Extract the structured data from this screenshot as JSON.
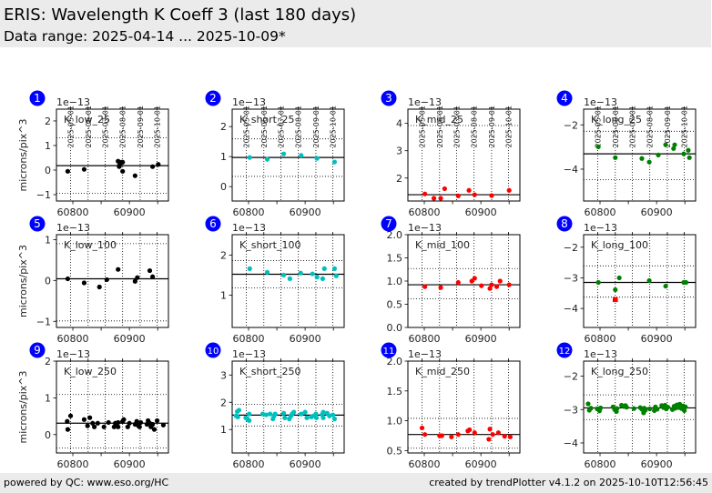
{
  "header": {
    "title": "ERIS: Wavelength K Coeff 3 (last 180 days)",
    "subtitle": "Data range: 2025-04-14 ... 2025-10-09*"
  },
  "footer": {
    "left": "powered by QC: www.eso.org/HC",
    "right": "created by trendPlotter v4.1.2 on 2025-10-10T12:56:45"
  },
  "ylabel": "microns/pix^3",
  "scale_label": "1e−13",
  "colors": {
    "low": "#000000",
    "short": "#00bfbf",
    "mid": "#ff0000",
    "long": "#008000",
    "badge": "#0000ff",
    "outlier": "#ff0000"
  },
  "date_ticks": [
    {
      "mjd": 60796,
      "label": "2025-05-01"
    },
    {
      "mjd": 60827,
      "label": "2025-06-01"
    },
    {
      "mjd": 60857,
      "label": "2025-07-01"
    },
    {
      "mjd": 60888,
      "label": "2025-08-01"
    },
    {
      "mjd": 60919,
      "label": "2025-09-01"
    },
    {
      "mjd": 60949,
      "label": "2025-10-01"
    }
  ],
  "xticks": [
    {
      "v": 60800,
      "label": "60800"
    },
    {
      "v": 60850,
      "label": ""
    },
    {
      "v": 60900,
      "label": "60900"
    },
    {
      "v": 60950,
      "label": ""
    }
  ],
  "chart_data": [
    {
      "type": "scatter",
      "index": "1",
      "title": "K_low_25",
      "color_key": "low",
      "xlim": [
        60771,
        60969
      ],
      "ylim": [
        -1.26,
        2.48
      ],
      "yticks": [
        {
          "v": -1,
          "label": "−1"
        },
        {
          "v": 0,
          "label": "0"
        },
        {
          "v": 1,
          "label": "1"
        },
        {
          "v": 2,
          "label": "2"
        }
      ],
      "median": 0.18,
      "limits": [
        1.31,
        -0.95
      ],
      "points": [
        [
          60791,
          -0.05
        ],
        [
          60820,
          0.03
        ],
        [
          60880,
          0.36
        ],
        [
          60882,
          0.17
        ],
        [
          60884,
          0.26
        ],
        [
          60886,
          0.32
        ],
        [
          60882,
          0.14
        ],
        [
          60888,
          -0.05
        ],
        [
          60888,
          0.32
        ],
        [
          60910,
          -0.23
        ],
        [
          60941,
          0.14
        ],
        [
          60951,
          0.23
        ]
      ],
      "outliers": []
    },
    {
      "type": "scatter",
      "index": "2",
      "title": "K_short_25",
      "color_key": "short",
      "xlim": [
        60771,
        60969
      ],
      "ylim": [
        -0.48,
        2.58
      ],
      "yticks": [
        {
          "v": 0,
          "label": "0"
        },
        {
          "v": 1,
          "label": "1"
        },
        {
          "v": 2,
          "label": "2"
        }
      ],
      "median": 0.97,
      "limits": [
        1.59,
        0.34
      ],
      "points": [
        [
          60802,
          0.97
        ],
        [
          60833,
          0.91
        ],
        [
          60862,
          1.09
        ],
        [
          60893,
          1.04
        ],
        [
          60921,
          0.94
        ],
        [
          60952,
          0.82
        ]
      ],
      "outliers": []
    },
    {
      "type": "scatter",
      "index": "3",
      "title": "K_mid_25",
      "color_key": "mid",
      "xlim": [
        60771,
        60969
      ],
      "ylim": [
        1.16,
        4.52
      ],
      "yticks": [
        {
          "v": 2,
          "label": "2"
        },
        {
          "v": 3,
          "label": "3"
        },
        {
          "v": 4,
          "label": "4"
        }
      ],
      "median": 1.39,
      "limits": [
        3.92
      ],
      "points": [
        [
          60801,
          1.42
        ],
        [
          60817,
          1.26
        ],
        [
          60829,
          1.26
        ],
        [
          60836,
          1.61
        ],
        [
          60860,
          1.35
        ],
        [
          60879,
          1.55
        ],
        [
          60889,
          1.39
        ],
        [
          60919,
          1.36
        ],
        [
          60950,
          1.55
        ]
      ],
      "outliers": []
    },
    {
      "type": "scatter",
      "index": "4",
      "title": "K_long_25",
      "color_key": "long",
      "xlim": [
        60771,
        60969
      ],
      "ylim": [
        -5.44,
        -1.29
      ],
      "yticks": [
        {
          "v": -4,
          "label": "−4"
        },
        {
          "v": -2,
          "label": "−2"
        }
      ],
      "median": -3.31,
      "limits": [
        -2.29,
        -4.48
      ],
      "points": [
        [
          60797,
          -2.99
        ],
        [
          60827,
          -3.48
        ],
        [
          60874,
          -3.52
        ],
        [
          60887,
          -3.68
        ],
        [
          60903,
          -3.36
        ],
        [
          60916,
          -2.9
        ],
        [
          60930,
          -3.07
        ],
        [
          60932,
          -2.9
        ],
        [
          60948,
          -3.31
        ],
        [
          60956,
          -3.15
        ],
        [
          60958,
          -3.48
        ]
      ],
      "outliers": []
    },
    {
      "type": "scatter",
      "index": "5",
      "title": "K_low_100",
      "color_key": "low",
      "xlim": [
        60771,
        60969
      ],
      "ylim": [
        -1.15,
        1.12
      ],
      "yticks": [
        {
          "v": -1,
          "label": "−1"
        },
        {
          "v": 0,
          "label": "0"
        },
        {
          "v": 1,
          "label": "1"
        }
      ],
      "median": 0.04,
      "limits": [
        0.9,
        -0.99
      ],
      "points": [
        [
          60791,
          0.04
        ],
        [
          60820,
          -0.06
        ],
        [
          60847,
          -0.16
        ],
        [
          60860,
          0.02
        ],
        [
          60880,
          0.27
        ],
        [
          60910,
          -0.02
        ],
        [
          60914,
          0.07
        ],
        [
          60936,
          0.24
        ],
        [
          60941,
          0.09
        ]
      ],
      "outliers": []
    },
    {
      "type": "scatter",
      "index": "6",
      "title": "K_short_100",
      "color_key": "short",
      "xlim": [
        60771,
        60969
      ],
      "ylim": [
        0.19,
        2.51
      ],
      "yticks": [
        {
          "v": 1,
          "label": "1"
        },
        {
          "v": 2,
          "label": "2"
        }
      ],
      "median": 1.52,
      "limits": [
        1.86,
        1.18
      ],
      "points": [
        [
          60802,
          1.66
        ],
        [
          60833,
          1.57
        ],
        [
          60862,
          1.5
        ],
        [
          60873,
          1.41
        ],
        [
          60892,
          1.55
        ],
        [
          60913,
          1.53
        ],
        [
          60921,
          1.45
        ],
        [
          60931,
          1.41
        ],
        [
          60934,
          1.66
        ],
        [
          60952,
          1.66
        ],
        [
          60955,
          1.48
        ]
      ],
      "outliers": []
    },
    {
      "type": "scatter",
      "index": "7",
      "title": "K_mid_100",
      "color_key": "mid",
      "xlim": [
        60771,
        60969
      ],
      "ylim": [
        0.0,
        2.0
      ],
      "yticks": [
        {
          "v": 0,
          "label": "0.0"
        },
        {
          "v": 0.5,
          "label": "0.5"
        },
        {
          "v": 1.0,
          "label": "1.0"
        },
        {
          "v": 1.5,
          "label": "1.5"
        },
        {
          "v": 2.0,
          "label": "2.0"
        }
      ],
      "median": 0.92,
      "limits": [
        1.27,
        0.62
      ],
      "points": [
        [
          60801,
          0.88
        ],
        [
          60829,
          0.86
        ],
        [
          60860,
          0.97
        ],
        [
          60884,
          1.0
        ],
        [
          60889,
          1.06
        ],
        [
          60901,
          0.9
        ],
        [
          60916,
          0.84
        ],
        [
          60919,
          0.92
        ],
        [
          60928,
          0.88
        ],
        [
          60934,
          1.0
        ],
        [
          60950,
          0.92
        ]
      ],
      "outliers": []
    },
    {
      "type": "scatter",
      "index": "8",
      "title": "K_long_100",
      "color_key": "long",
      "xlim": [
        60771,
        60969
      ],
      "ylim": [
        -4.62,
        -1.59
      ],
      "yticks": [
        {
          "v": -4,
          "label": "−4"
        },
        {
          "v": -3,
          "label": "−3"
        },
        {
          "v": -2,
          "label": "−2"
        }
      ],
      "median": -3.15,
      "limits": [
        -2.61,
        -3.63
      ],
      "points": [
        [
          60797,
          -3.15
        ],
        [
          60827,
          -3.39
        ],
        [
          60834,
          -3.0
        ],
        [
          60887,
          -3.09
        ],
        [
          60916,
          -3.27
        ],
        [
          60948,
          -3.15
        ],
        [
          60952,
          -3.15
        ]
      ],
      "outliers": [
        [
          60827,
          -3.71
        ]
      ]
    },
    {
      "type": "scatter",
      "index": "9",
      "title": "K_low_250",
      "color_key": "low",
      "xlim": [
        60771,
        60969
      ],
      "ylim": [
        -0.5,
        2.0
      ],
      "yticks": [
        {
          "v": 0,
          "label": "0"
        },
        {
          "v": 1,
          "label": "1"
        },
        {
          "v": 2,
          "label": "2"
        }
      ],
      "median": 0.31,
      "limits": [
        1.09,
        -0.36
      ],
      "points": [
        [
          60790,
          0.36
        ],
        [
          60791,
          0.14
        ],
        [
          60796,
          0.51
        ],
        [
          60820,
          0.41
        ],
        [
          60826,
          0.24
        ],
        [
          60830,
          0.46
        ],
        [
          60835,
          0.31
        ],
        [
          60838,
          0.21
        ],
        [
          60844,
          0.31
        ],
        [
          60855,
          0.21
        ],
        [
          60863,
          0.33
        ],
        [
          60873,
          0.21
        ],
        [
          60875,
          0.31
        ],
        [
          60876,
          0.26
        ],
        [
          60880,
          0.21
        ],
        [
          60880,
          0.33
        ],
        [
          60888,
          0.36
        ],
        [
          60890,
          0.41
        ],
        [
          60897,
          0.21
        ],
        [
          60900,
          0.31
        ],
        [
          60910,
          0.28
        ],
        [
          60913,
          0.36
        ],
        [
          60916,
          0.24
        ],
        [
          60918,
          0.21
        ],
        [
          60920,
          0.33
        ],
        [
          60931,
          0.28
        ],
        [
          60933,
          0.38
        ],
        [
          60936,
          0.31
        ],
        [
          60938,
          0.21
        ],
        [
          60941,
          0.28
        ],
        [
          60944,
          0.14
        ],
        [
          60949,
          0.38
        ],
        [
          60960,
          0.26
        ]
      ],
      "outliers": []
    },
    {
      "type": "scatter",
      "index": "10",
      "title": "K_short_250",
      "color_key": "short",
      "xlim": [
        60771,
        60969
      ],
      "ylim": [
        0.14,
        3.51
      ],
      "yticks": [
        {
          "v": 1,
          "label": "1"
        },
        {
          "v": 2,
          "label": "2"
        },
        {
          "v": 3,
          "label": "3"
        }
      ],
      "median": 1.53,
      "limits": [
        1.93,
        1.13
      ],
      "points": [
        [
          60778,
          1.5
        ],
        [
          60780,
          1.66
        ],
        [
          60783,
          1.71
        ],
        [
          60781,
          1.46
        ],
        [
          60795,
          1.43
        ],
        [
          60801,
          1.57
        ],
        [
          60801,
          1.33
        ],
        [
          60798,
          1.39
        ],
        [
          60825,
          1.57
        ],
        [
          60831,
          1.54
        ],
        [
          60838,
          1.57
        ],
        [
          60843,
          1.39
        ],
        [
          60847,
          1.57
        ],
        [
          60845,
          1.5
        ],
        [
          60862,
          1.6
        ],
        [
          60864,
          1.43
        ],
        [
          60872,
          1.39
        ],
        [
          60875,
          1.5
        ],
        [
          60877,
          1.57
        ],
        [
          60880,
          1.64
        ],
        [
          60893,
          1.57
        ],
        [
          60900,
          1.64
        ],
        [
          60903,
          1.43
        ],
        [
          60911,
          1.46
        ],
        [
          60915,
          1.5
        ],
        [
          60919,
          1.57
        ],
        [
          60920,
          1.43
        ],
        [
          60930,
          1.55
        ],
        [
          60932,
          1.64
        ],
        [
          60932,
          1.43
        ],
        [
          60939,
          1.6
        ],
        [
          60943,
          1.5
        ],
        [
          60949,
          1.54
        ],
        [
          60952,
          1.39
        ]
      ],
      "outliers": []
    },
    {
      "type": "scatter",
      "index": "11",
      "title": "K_mid_250",
      "color_key": "mid",
      "xlim": [
        60771,
        60969
      ],
      "ylim": [
        0.46,
        2.0
      ],
      "yticks": [
        {
          "v": 0.5,
          "label": "0.5"
        },
        {
          "v": 1.0,
          "label": "1.0"
        },
        {
          "v": 1.5,
          "label": "1.5"
        },
        {
          "v": 2.0,
          "label": "2.0"
        }
      ],
      "median": 0.77,
      "limits": [
        1.04,
        0.54
      ],
      "points": [
        [
          60796,
          0.88
        ],
        [
          60801,
          0.77
        ],
        [
          60827,
          0.75
        ],
        [
          60831,
          0.75
        ],
        [
          60848,
          0.73
        ],
        [
          60860,
          0.77
        ],
        [
          60877,
          0.83
        ],
        [
          60880,
          0.85
        ],
        [
          60889,
          0.8
        ],
        [
          60914,
          0.69
        ],
        [
          60916,
          0.86
        ],
        [
          60921,
          0.77
        ],
        [
          60931,
          0.8
        ],
        [
          60942,
          0.74
        ],
        [
          60952,
          0.73
        ]
      ],
      "outliers": []
    },
    {
      "type": "scatter",
      "index": "12",
      "title": "K_long_250",
      "color_key": "long",
      "xlim": [
        60771,
        60969
      ],
      "ylim": [
        -4.3,
        -1.55
      ],
      "yticks": [
        {
          "v": -4,
          "label": "−4"
        },
        {
          "v": -3,
          "label": "−3"
        },
        {
          "v": -2,
          "label": "−2"
        }
      ],
      "median": -2.95,
      "limits": [
        -2.56,
        -3.3
      ],
      "points": [
        [
          60779,
          -2.83
        ],
        [
          60781,
          -3.02
        ],
        [
          60784,
          -2.96
        ],
        [
          60795,
          -2.98
        ],
        [
          60799,
          -3.04
        ],
        [
          60801,
          -2.95
        ],
        [
          60823,
          -2.92
        ],
        [
          60826,
          -3.0
        ],
        [
          60829,
          -3.06
        ],
        [
          60830,
          -2.97
        ],
        [
          60838,
          -2.87
        ],
        [
          60842,
          -2.91
        ],
        [
          60845,
          -2.88
        ],
        [
          60847,
          -2.93
        ],
        [
          60860,
          -2.97
        ],
        [
          60871,
          -2.94
        ],
        [
          60874,
          -2.99
        ],
        [
          60877,
          -3.1
        ],
        [
          60878,
          -2.96
        ],
        [
          60880,
          -3.02
        ],
        [
          60888,
          -2.98
        ],
        [
          60896,
          -3.03
        ],
        [
          60898,
          -2.92
        ],
        [
          60901,
          -2.99
        ],
        [
          60909,
          -2.88
        ],
        [
          60912,
          -2.94
        ],
        [
          60915,
          -2.87
        ],
        [
          60917,
          -2.98
        ],
        [
          60920,
          -2.93
        ],
        [
          60928,
          -3.0
        ],
        [
          60931,
          -2.9
        ],
        [
          60933,
          -2.96
        ],
        [
          60936,
          -2.86
        ],
        [
          60939,
          -2.94
        ],
        [
          60941,
          -2.84
        ],
        [
          60944,
          -2.97
        ],
        [
          60947,
          -2.89
        ],
        [
          60949,
          -3.03
        ],
        [
          60951,
          -2.92
        ]
      ],
      "outliers": []
    }
  ]
}
